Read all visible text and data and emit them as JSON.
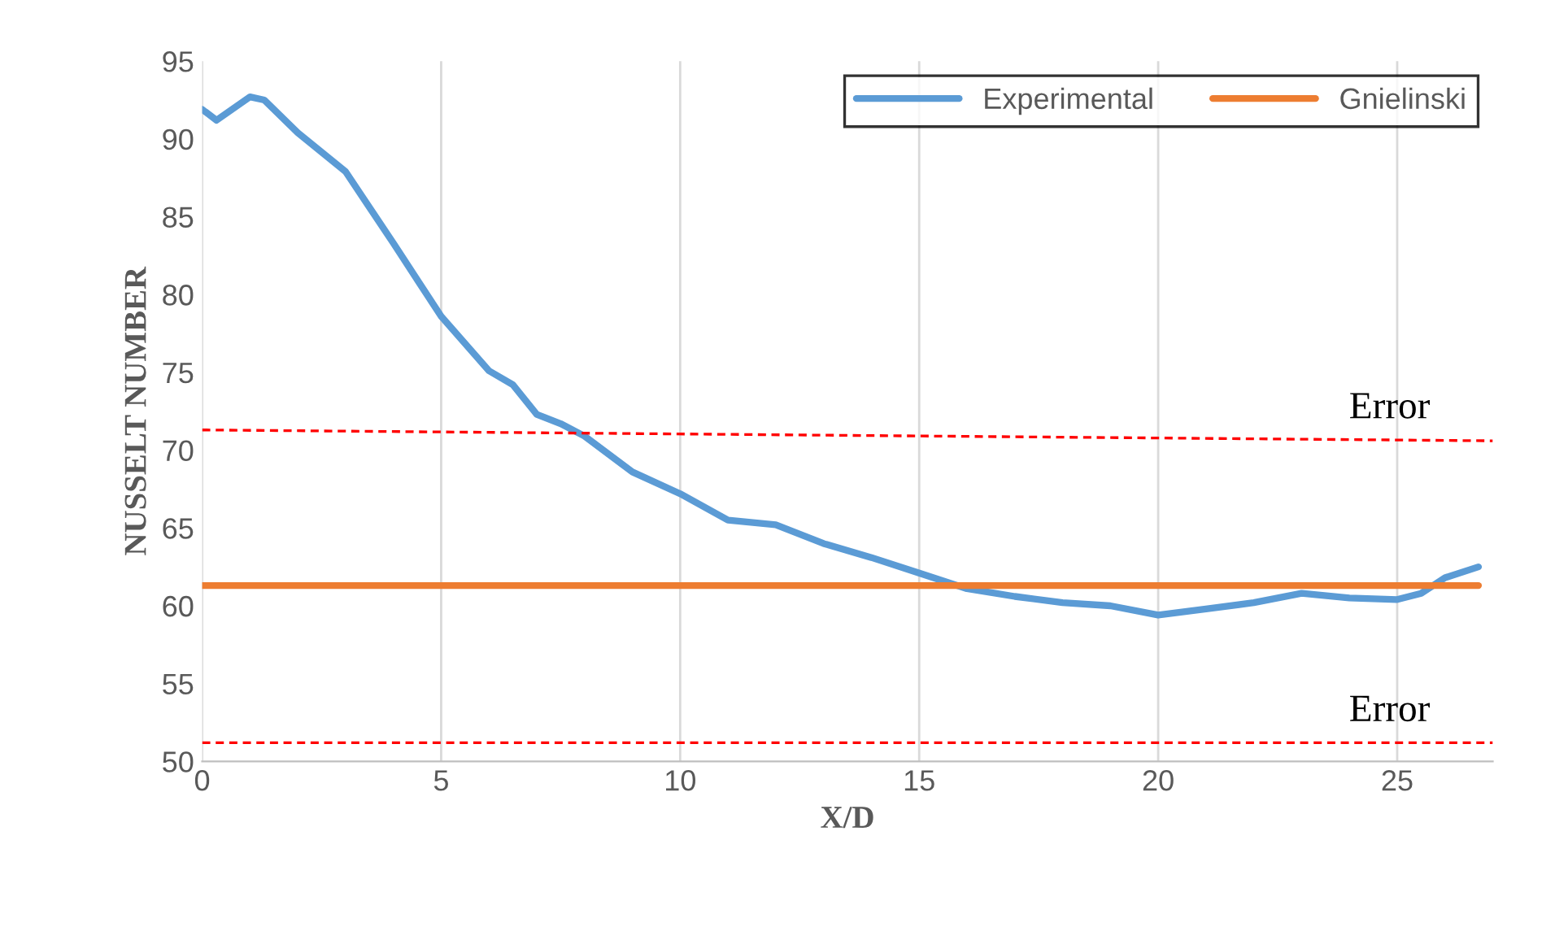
{
  "chart_data": {
    "type": "line",
    "xlabel": "X/D",
    "ylabel": "NUSSELT NUMBER",
    "xlim": [
      0,
      27
    ],
    "ylim": [
      50,
      95
    ],
    "xticks": [
      0,
      5,
      10,
      15,
      20,
      25
    ],
    "yticks": [
      50,
      55,
      60,
      65,
      70,
      75,
      80,
      85,
      90,
      95
    ],
    "grid": "x",
    "legend": "top right",
    "series": [
      {
        "name": "Experimental",
        "color": "#5b9bd5",
        "x": [
          0,
          0.3,
          1,
          1.3,
          2,
          3,
          4,
          5,
          6,
          6.5,
          7,
          7.5,
          8,
          9,
          10,
          11,
          12,
          13,
          14,
          15,
          16,
          17,
          18,
          19,
          20,
          21,
          22,
          23,
          24,
          25,
          25.5,
          26,
          26.7
        ],
        "values": [
          91.9,
          91.2,
          92.7,
          92.5,
          90.4,
          87.9,
          83.3,
          78.6,
          75.1,
          74.2,
          72.3,
          71.7,
          70.9,
          68.6,
          67.2,
          65.5,
          65.2,
          64.0,
          63.1,
          62.1,
          61.1,
          60.6,
          60.2,
          60.0,
          59.4,
          59.8,
          60.2,
          60.8,
          60.5,
          60.4,
          60.8,
          61.8,
          62.5
        ]
      },
      {
        "name": "Gnielinski",
        "color": "#ed7d31",
        "x": [
          0,
          26.7
        ],
        "values": [
          61.3,
          61.3
        ]
      },
      {
        "color": "#ff0000",
        "line_style": "dashed",
        "x": [
          0,
          27
        ],
        "values": [
          71.3,
          70.6
        ]
      },
      {
        "color": "#ff0000",
        "line_style": "dashed",
        "x": [
          0,
          27
        ],
        "values": [
          51.2,
          51.2
        ]
      }
    ],
    "annotations": [
      "Error",
      "Error"
    ]
  }
}
